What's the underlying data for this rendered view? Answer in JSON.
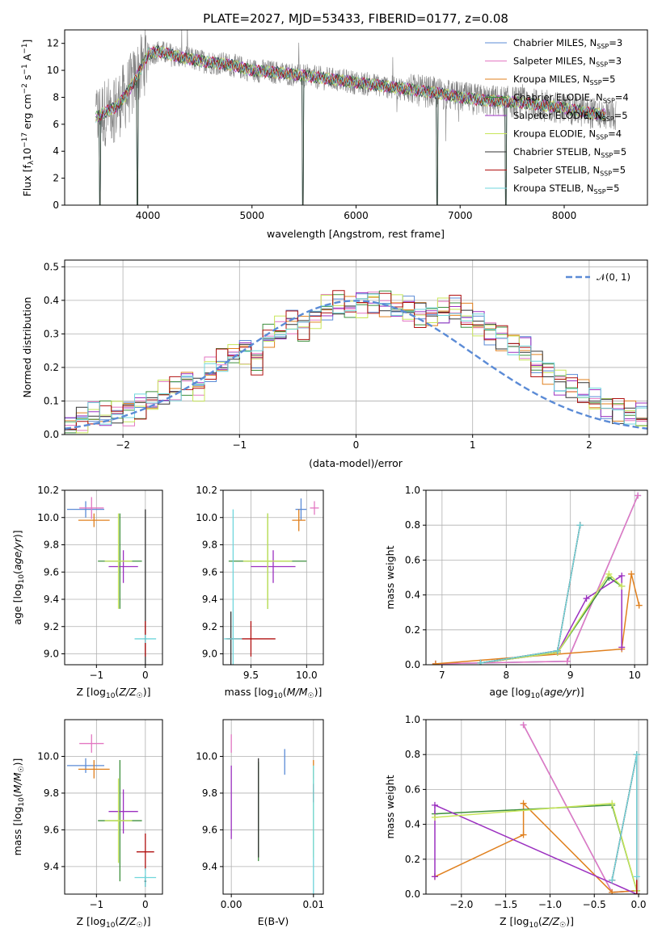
{
  "figure": {
    "title": "PLATE=2027, MJD=53433, FIBERID=0177, z=0.08",
    "colors": {
      "Chabrier MILES": "#5b8bd6",
      "Salpeter MILES": "#e377c2",
      "Kroupa MILES": "#e0801e",
      "Chabrier ELODIE": "#3d8f3d",
      "Salpeter ELODIE": "#9b30c0",
      "Kroupa ELODIE": "#c8e65a",
      "Chabrier STELIB": "#333333",
      "Salpeter STELIB": "#b01010",
      "Kroupa STELIB": "#6fd6dc",
      "data": "#808080",
      "normal": "#5b8bd6"
    }
  },
  "chart_data": [
    {
      "id": "spectrum",
      "type": "line",
      "xlabel": "wavelength [Angstrom, rest frame]",
      "ylabel": "Flux [fλ10⁻¹⁷ erg cm⁻² s⁻¹ A⁻¹]",
      "xlim": [
        3200,
        8800
      ],
      "ylim": [
        0,
        13
      ],
      "xticks": [
        4000,
        5000,
        6000,
        7000,
        8000
      ],
      "yticks": [
        0,
        2,
        4,
        6,
        8,
        10,
        12
      ],
      "grid": false,
      "legend_position": "top-right",
      "continuum": {
        "x": [
          3500,
          3560,
          3700,
          3800,
          3900,
          4000,
          4100,
          4300,
          4500,
          4800,
          5000,
          5300,
          5600,
          5900,
          6200,
          6500,
          6800,
          7000,
          7200,
          7400,
          7600,
          7800,
          8000,
          8200,
          8400
        ],
        "y": [
          6.5,
          6.8,
          7.3,
          8.3,
          9.6,
          11.2,
          11.4,
          11.0,
          10.7,
          10.4,
          10.0,
          9.8,
          9.5,
          9.2,
          8.9,
          8.6,
          8.3,
          8.0,
          7.8,
          7.7,
          7.6,
          7.4,
          7.2,
          6.9,
          6.7
        ]
      },
      "observed_range": [
        3500,
        8500
      ],
      "model_range": [
        3500,
        8400
      ],
      "absorption_dips": [
        {
          "x": 3540,
          "y": 0
        },
        {
          "x": 3900,
          "y": 0
        },
        {
          "x": 5490,
          "y": 0
        },
        {
          "x": 6780,
          "y": 0
        },
        {
          "x": 7440,
          "y": 0
        }
      ],
      "legend": [
        {
          "label": "Chabrier MILES, N",
          "sub": "SSP",
          "eq": "=3"
        },
        {
          "label": "Salpeter MILES, N",
          "sub": "SSP",
          "eq": "=3"
        },
        {
          "label": "Kroupa MILES, N",
          "sub": "SSP",
          "eq": "=5"
        },
        {
          "label": "Chabrier ELODIE, N",
          "sub": "SSP",
          "eq": "=4"
        },
        {
          "label": "Salpeter ELODIE, N",
          "sub": "SSP",
          "eq": "=5"
        },
        {
          "label": "Kroupa ELODIE, N",
          "sub": "SSP",
          "eq": "=4"
        },
        {
          "label": "Chabrier STELIB, N",
          "sub": "SSP",
          "eq": "=5"
        },
        {
          "label": "Salpeter STELIB, N",
          "sub": "SSP",
          "eq": "=5"
        },
        {
          "label": "Kroupa STELIB, N",
          "sub": "SSP",
          "eq": "=5"
        }
      ]
    },
    {
      "id": "residuals",
      "type": "histogram",
      "xlabel": "(data-model)/error",
      "ylabel": "Normed distribution",
      "xlim": [
        -2.5,
        2.5
      ],
      "ylim": [
        0,
        0.52
      ],
      "xticks": [
        -2,
        -1,
        0,
        1,
        2
      ],
      "yticks": [
        0.0,
        0.1,
        0.2,
        0.3,
        0.4,
        0.5
      ],
      "grid": true,
      "legend_position": "top-right",
      "legend_label": "𝒩(0, 1)",
      "bin_width": 0.1,
      "bin_start": -2.5,
      "heights": [
        0.027,
        0.045,
        0.06,
        0.057,
        0.065,
        0.07,
        0.085,
        0.095,
        0.12,
        0.135,
        0.16,
        0.14,
        0.19,
        0.215,
        0.24,
        0.25,
        0.22,
        0.29,
        0.31,
        0.335,
        0.32,
        0.35,
        0.38,
        0.385,
        0.38,
        0.39,
        0.4,
        0.39,
        0.38,
        0.37,
        0.36,
        0.355,
        0.37,
        0.375,
        0.35,
        0.33,
        0.31,
        0.29,
        0.27,
        0.25,
        0.21,
        0.19,
        0.16,
        0.14,
        0.12,
        0.1,
        0.09,
        0.075,
        0.065,
        0.05
      ]
    },
    {
      "id": "age_vs_Z",
      "type": "errorbar",
      "xlabel": "Z [log₁₀(Z/Z☉)]",
      "ylabel": "age  [log₁₀(age/yr)]",
      "xlim": [
        -1.65,
        0.35
      ],
      "ylim": [
        8.92,
        10.2
      ],
      "xticks": [
        -1,
        0
      ],
      "yticks": [
        9.0,
        9.2,
        9.4,
        9.6,
        9.8,
        10.0,
        10.2
      ],
      "grid": true,
      "points": [
        {
          "series": "Chabrier MILES",
          "x": -1.22,
          "y": 10.06,
          "xerr": 0.38,
          "yerr": 0.06
        },
        {
          "series": "Salpeter MILES",
          "x": -1.1,
          "y": 10.07,
          "xerr": 0.25,
          "yerr": 0.08
        },
        {
          "series": "Kroupa MILES",
          "x": -1.05,
          "y": 9.98,
          "xerr": 0.32,
          "yerr": 0.05
        },
        {
          "series": "Chabrier ELODIE",
          "x": -0.52,
          "y": 9.68,
          "xerr": 0.45,
          "yerr": 0.35
        },
        {
          "series": "Salpeter ELODIE",
          "x": -0.45,
          "y": 9.64,
          "xerr": 0.3,
          "yerr": 0.12
        },
        {
          "series": "Kroupa ELODIE",
          "x": -0.55,
          "y": 9.68,
          "xerr": 0.28,
          "yerr": 0.35
        },
        {
          "series": "Chabrier STELIB",
          "x": 0.0,
          "y": 9.11,
          "xerr": 0.02,
          "yerr": 0.95
        },
        {
          "series": "Salpeter STELIB",
          "x": 0.0,
          "y": 9.11,
          "xerr": 0.02,
          "yerr": 0.13
        },
        {
          "series": "Kroupa STELIB",
          "x": 0.0,
          "y": 9.11,
          "xerr": 0.22,
          "yerr": 0.03
        }
      ]
    },
    {
      "id": "age_vs_mass",
      "type": "errorbar",
      "xlabel": "mass [log₁₀(M/M☉)]",
      "ylabel": "",
      "xlim": [
        9.25,
        10.15
      ],
      "ylim": [
        8.92,
        10.2
      ],
      "xticks": [
        9.5,
        10.0
      ],
      "yticks": [
        9.0,
        9.2,
        9.4,
        9.6,
        9.8,
        10.0,
        10.2
      ],
      "grid": true,
      "points": [
        {
          "series": "Chabrier MILES",
          "x": 9.95,
          "y": 10.06,
          "xerr": 0.05,
          "yerr": 0.08
        },
        {
          "series": "Salpeter MILES",
          "x": 10.07,
          "y": 10.07,
          "xerr": 0.04,
          "yerr": 0.05
        },
        {
          "series": "Kroupa MILES",
          "x": 9.93,
          "y": 9.98,
          "xerr": 0.06,
          "yerr": 0.08
        },
        {
          "series": "Chabrier ELODIE",
          "x": 9.65,
          "y": 9.68,
          "xerr": 0.35,
          "yerr": 0.35
        },
        {
          "series": "Salpeter ELODIE",
          "x": 9.7,
          "y": 9.64,
          "xerr": 0.2,
          "yerr": 0.12
        },
        {
          "series": "Kroupa ELODIE",
          "x": 9.65,
          "y": 9.68,
          "xerr": 0.22,
          "yerr": 0.35
        },
        {
          "series": "Chabrier STELIB",
          "x": 9.32,
          "y": 9.11,
          "xerr": 0.02,
          "yerr": 0.2
        },
        {
          "series": "Salpeter STELIB",
          "x": 9.5,
          "y": 9.11,
          "xerr": 0.22,
          "yerr": 0.13
        },
        {
          "series": "Kroupa STELIB",
          "x": 9.34,
          "y": 9.11,
          "xerr": 0.08,
          "yerr": 0.95
        }
      ]
    },
    {
      "id": "weight_vs_age",
      "type": "line",
      "xlabel": "age  [log₁₀(age/yr)]",
      "ylabel": "mass weight",
      "xlim": [
        6.75,
        10.2
      ],
      "ylim": [
        0,
        1.0
      ],
      "xticks": [
        7,
        8,
        9,
        10
      ],
      "yticks": [
        0.0,
        0.2,
        0.4,
        0.6,
        0.8,
        1.0
      ],
      "grid": true,
      "series": [
        {
          "name": "Chabrier MILES",
          "x": [
            6.9,
            8.95,
            10.05
          ],
          "y": [
            0.005,
            0.02,
            0.97
          ]
        },
        {
          "name": "Salpeter MILES",
          "x": [
            6.9,
            8.95,
            10.05
          ],
          "y": [
            0.005,
            0.02,
            0.97
          ]
        },
        {
          "name": "Kroupa MILES",
          "x": [
            6.9,
            9.8,
            9.95,
            10.07
          ],
          "y": [
            0.005,
            0.09,
            0.52,
            0.34
          ]
        },
        {
          "name": "Chabrier ELODIE",
          "x": [
            7.6,
            8.8,
            9.6,
            9.8
          ],
          "y": [
            0.01,
            0.07,
            0.5,
            0.45
          ]
        },
        {
          "name": "Salpeter ELODIE",
          "x": [
            7.6,
            8.8,
            9.25,
            9.8,
            9.8
          ],
          "y": [
            0.01,
            0.07,
            0.38,
            0.51,
            0.1
          ]
        },
        {
          "name": "Kroupa ELODIE",
          "x": [
            7.6,
            8.8,
            9.6,
            9.8
          ],
          "y": [
            0.01,
            0.07,
            0.52,
            0.45
          ]
        },
        {
          "name": "Chabrier STELIB",
          "x": [
            7.6,
            8.8,
            9.15
          ],
          "y": [
            0.01,
            0.08,
            0.8
          ]
        },
        {
          "name": "Salpeter STELIB",
          "x": [
            7.6,
            8.8,
            9.15
          ],
          "y": [
            0.01,
            0.08,
            0.8
          ]
        },
        {
          "name": "Kroupa STELIB",
          "x": [
            7.6,
            8.8,
            9.15
          ],
          "y": [
            0.01,
            0.08,
            0.8
          ]
        }
      ]
    },
    {
      "id": "mass_vs_Z",
      "type": "errorbar",
      "xlabel": "Z [log₁₀(Z/Z☉)]",
      "ylabel": "mass [log₁₀(M/M☉)]",
      "xlim": [
        -1.65,
        0.35
      ],
      "ylim": [
        9.25,
        10.2
      ],
      "xticks": [
        -1,
        0
      ],
      "yticks": [
        9.4,
        9.6,
        9.8,
        10.0
      ],
      "grid": true,
      "points": [
        {
          "series": "Chabrier MILES",
          "x": -1.22,
          "y": 9.95,
          "xerr": 0.38,
          "yerr": 0.04
        },
        {
          "series": "Salpeter MILES",
          "x": -1.1,
          "y": 10.07,
          "xerr": 0.25,
          "yerr": 0.05
        },
        {
          "series": "Kroupa MILES",
          "x": -1.05,
          "y": 9.93,
          "xerr": 0.32,
          "yerr": 0.05
        },
        {
          "series": "Chabrier ELODIE",
          "x": -0.52,
          "y": 9.65,
          "xerr": 0.45,
          "yerr": 0.33
        },
        {
          "series": "Salpeter ELODIE",
          "x": -0.45,
          "y": 9.7,
          "xerr": 0.3,
          "yerr": 0.12
        },
        {
          "series": "Kroupa ELODIE",
          "x": -0.55,
          "y": 9.65,
          "xerr": 0.28,
          "yerr": 0.23
        },
        {
          "series": "Chabrier STELIB",
          "x": 0.0,
          "y": 9.32,
          "xerr": 0.02,
          "yerr": 0.03
        },
        {
          "series": "Salpeter STELIB",
          "x": 0.0,
          "y": 9.48,
          "xerr": 0.18,
          "yerr": 0.1
        },
        {
          "series": "Kroupa STELIB",
          "x": 0.0,
          "y": 9.34,
          "xerr": 0.22,
          "yerr": 0.05
        }
      ]
    },
    {
      "id": "mass_vs_ebv",
      "type": "errorbar",
      "xlabel": "E(B-V)",
      "ylabel": "",
      "xlim": [
        -0.001,
        0.0112
      ],
      "ylim": [
        9.25,
        10.2
      ],
      "xticks": [
        0.0,
        0.01
      ],
      "xticklabels": [
        "0.00",
        "0.01"
      ],
      "yticks": [
        9.4,
        9.6,
        9.8,
        10.0
      ],
      "grid": true,
      "points": [
        {
          "series": "Chabrier MILES",
          "x": 0.0065,
          "y": 9.97,
          "xerr": 0,
          "yerr": 0.07
        },
        {
          "series": "Salpeter MILES",
          "x": 0.0,
          "y": 10.07,
          "xerr": 0,
          "yerr": 0.05
        },
        {
          "series": "Kroupa MILES",
          "x": 0.01,
          "y": 9.93,
          "xerr": 0,
          "yerr": 0.05
        },
        {
          "series": "Chabrier ELODIE",
          "x": 0.0033,
          "y": 9.7,
          "xerr": 0,
          "yerr": 0.27
        },
        {
          "series": "Salpeter ELODIE",
          "x": 0.0,
          "y": 9.75,
          "xerr": 0,
          "yerr": 0.2
        },
        {
          "series": "Kroupa ELODIE",
          "x": 0.01,
          "y": 9.7,
          "xerr": 0,
          "yerr": 0.25
        },
        {
          "series": "Chabrier STELIB",
          "x": 0.0033,
          "y": 9.72,
          "xerr": 0,
          "yerr": 0.27
        },
        {
          "series": "Salpeter STELIB",
          "x": 0.01,
          "y": 9.8,
          "xerr": 0,
          "yerr": 0.05
        },
        {
          "series": "Kroupa STELIB",
          "x": 0.01,
          "y": 9.6,
          "xerr": 0,
          "yerr": 0.35
        }
      ]
    },
    {
      "id": "weight_vs_Z",
      "type": "line",
      "xlabel": "Z [log₁₀(Z/Z☉)]",
      "ylabel": "mass weight",
      "xlim": [
        -2.4,
        0.1
      ],
      "ylim": [
        0,
        1.0
      ],
      "xticks": [
        -2.0,
        -1.5,
        -1.0,
        -0.5,
        0.0
      ],
      "xticklabels": [
        "−2.0",
        "−1.5",
        "−1.0",
        "−0.5",
        "0.0"
      ],
      "yticks": [
        0.0,
        0.2,
        0.4,
        0.6,
        0.8,
        1.0
      ],
      "grid": true,
      "series": [
        {
          "name": "Chabrier MILES",
          "x": [
            -1.3,
            -0.3,
            -0.02
          ],
          "y": [
            0.97,
            0.01,
            0.02
          ]
        },
        {
          "name": "Salpeter MILES",
          "x": [
            -1.3,
            -0.3,
            -0.02
          ],
          "y": [
            0.97,
            0.01,
            0.02
          ]
        },
        {
          "name": "Kroupa MILES",
          "x": [
            -2.3,
            -1.3,
            -1.3,
            -0.3,
            -0.02
          ],
          "y": [
            0.1,
            0.34,
            0.52,
            0.01,
            0.02
          ]
        },
        {
          "name": "Chabrier ELODIE",
          "x": [
            -2.3,
            -0.3,
            -0.02
          ],
          "y": [
            0.46,
            0.51,
            0.02
          ]
        },
        {
          "name": "Salpeter ELODIE",
          "x": [
            -2.3,
            -2.3,
            -0.02
          ],
          "y": [
            0.1,
            0.51,
            0.0
          ]
        },
        {
          "name": "Kroupa ELODIE",
          "x": [
            -2.3,
            -0.3,
            -0.02
          ],
          "y": [
            0.44,
            0.52,
            0.02
          ]
        },
        {
          "name": "Chabrier STELIB",
          "x": [
            -0.3,
            -0.02,
            -0.02
          ],
          "y": [
            0.08,
            0.8,
            0.0
          ]
        },
        {
          "name": "Salpeter STELIB",
          "x": [
            -0.3,
            -0.02,
            -0.02
          ],
          "y": [
            0.08,
            0.8,
            0.0
          ]
        },
        {
          "name": "Kroupa STELIB",
          "x": [
            -0.3,
            -0.02,
            -0.02
          ],
          "y": [
            0.08,
            0.8,
            0.1
          ]
        }
      ]
    }
  ]
}
